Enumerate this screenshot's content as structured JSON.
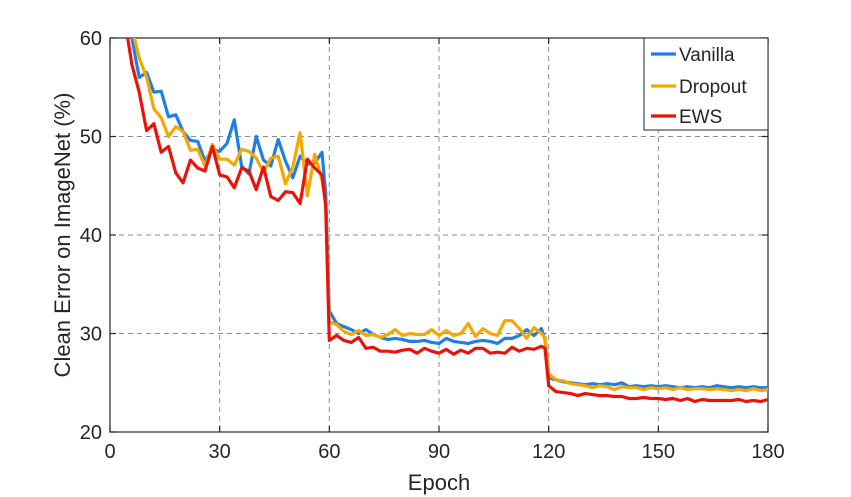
{
  "chart_data": {
    "type": "line",
    "title": "",
    "xlabel": "Epoch",
    "ylabel": "Clean Error on ImageNet (%)",
    "xlim": [
      0,
      180
    ],
    "ylim": [
      20,
      60
    ],
    "xticks": [
      0,
      30,
      60,
      90,
      120,
      150,
      180
    ],
    "yticks": [
      20,
      30,
      40,
      50,
      60
    ],
    "xtick_labels": [
      "0",
      "30",
      "60",
      "90",
      "120",
      "150",
      "180"
    ],
    "ytick_labels": [
      "20",
      "30",
      "40",
      "50",
      "60"
    ],
    "grid": true,
    "legend_position": "top-right",
    "series": [
      {
        "name": "Vanilla",
        "color": "#1f7fe8",
        "x": [
          4,
          6,
          8,
          10,
          12,
          14,
          16,
          18,
          20,
          22,
          24,
          26,
          28,
          30,
          32,
          34,
          36,
          38,
          40,
          42,
          44,
          46,
          48,
          50,
          52,
          54,
          56,
          58,
          59,
          60,
          62,
          64,
          66,
          68,
          70,
          72,
          74,
          76,
          78,
          80,
          82,
          84,
          86,
          88,
          90,
          92,
          94,
          96,
          98,
          100,
          102,
          104,
          106,
          108,
          110,
          112,
          114,
          116,
          118,
          119,
          120,
          122,
          124,
          126,
          128,
          130,
          132,
          134,
          136,
          138,
          140,
          142,
          144,
          146,
          148,
          150,
          152,
          154,
          156,
          158,
          160,
          162,
          164,
          166,
          168,
          170,
          172,
          174,
          176,
          178,
          180
        ],
        "y": [
          62.0,
          60.0,
          56.0,
          56.5,
          54.5,
          54.6,
          52.0,
          52.2,
          50.5,
          49.6,
          49.5,
          47.5,
          48.7,
          48.5,
          49.3,
          51.7,
          47.0,
          46.2,
          50.0,
          47.6,
          47.0,
          49.7,
          47.5,
          45.8,
          48.0,
          47.2,
          47.3,
          48.4,
          44.2,
          32.3,
          31.0,
          30.7,
          30.4,
          30.0,
          30.4,
          29.9,
          29.6,
          29.4,
          29.5,
          29.4,
          29.2,
          29.2,
          29.3,
          29.1,
          29.0,
          29.5,
          29.2,
          29.1,
          29.0,
          29.2,
          29.3,
          29.2,
          29.0,
          29.5,
          29.5,
          29.8,
          30.4,
          29.8,
          30.5,
          29.4,
          25.5,
          25.3,
          25.1,
          25.0,
          24.9,
          24.8,
          24.9,
          24.8,
          24.9,
          24.8,
          25.0,
          24.6,
          24.7,
          24.6,
          24.7,
          24.6,
          24.7,
          24.6,
          24.5,
          24.6,
          24.5,
          24.6,
          24.5,
          24.7,
          24.6,
          24.5,
          24.6,
          24.5,
          24.6,
          24.5,
          24.5
        ]
      },
      {
        "name": "Dropout",
        "color": "#f5a800",
        "x": [
          4,
          6,
          8,
          10,
          12,
          14,
          16,
          18,
          20,
          22,
          24,
          26,
          28,
          30,
          32,
          34,
          36,
          38,
          40,
          42,
          44,
          46,
          48,
          50,
          52,
          54,
          56,
          58,
          59,
          60,
          62,
          64,
          66,
          68,
          70,
          72,
          74,
          76,
          78,
          80,
          82,
          84,
          86,
          88,
          90,
          92,
          94,
          96,
          98,
          100,
          102,
          104,
          106,
          108,
          110,
          112,
          114,
          116,
          118,
          119,
          120,
          122,
          124,
          126,
          128,
          130,
          132,
          134,
          136,
          138,
          140,
          142,
          144,
          146,
          148,
          150,
          152,
          154,
          156,
          158,
          160,
          162,
          164,
          166,
          168,
          170,
          172,
          174,
          176,
          178,
          180
        ],
        "y": [
          62.0,
          61.0,
          58.0,
          56.0,
          52.8,
          51.9,
          50.0,
          51.0,
          50.5,
          48.6,
          48.7,
          47.0,
          49.2,
          47.7,
          47.7,
          47.1,
          48.7,
          48.5,
          47.8,
          46.4,
          47.8,
          48.0,
          45.2,
          46.9,
          50.4,
          44.0,
          48.2,
          45.6,
          43.2,
          31.2,
          30.9,
          30.2,
          29.9,
          30.3,
          29.8,
          29.9,
          29.6,
          29.9,
          30.4,
          29.8,
          30.0,
          29.9,
          29.9,
          30.4,
          29.8,
          30.3,
          29.8,
          30.0,
          31.0,
          29.7,
          30.5,
          30.0,
          29.8,
          31.3,
          31.3,
          30.5,
          29.5,
          30.6,
          30.0,
          29.6,
          25.9,
          25.3,
          25.2,
          24.9,
          24.8,
          24.7,
          24.5,
          24.7,
          24.6,
          24.3,
          24.6,
          24.5,
          24.5,
          24.3,
          24.5,
          24.4,
          24.5,
          24.3,
          24.5,
          24.3,
          24.4,
          24.4,
          24.3,
          24.4,
          24.3,
          24.2,
          24.3,
          24.2,
          24.4,
          24.2,
          24.3
        ]
      },
      {
        "name": "EWS",
        "color": "#e8140c",
        "x": [
          4,
          6,
          8,
          10,
          12,
          14,
          16,
          18,
          20,
          22,
          24,
          26,
          28,
          30,
          32,
          34,
          36,
          38,
          40,
          42,
          44,
          46,
          48,
          50,
          52,
          54,
          56,
          58,
          59,
          60,
          62,
          64,
          66,
          68,
          70,
          72,
          74,
          76,
          78,
          80,
          82,
          84,
          86,
          88,
          90,
          92,
          94,
          96,
          98,
          100,
          102,
          104,
          106,
          108,
          110,
          112,
          114,
          116,
          118,
          119,
          120,
          122,
          124,
          126,
          128,
          130,
          132,
          134,
          136,
          138,
          140,
          142,
          144,
          146,
          148,
          150,
          152,
          154,
          156,
          158,
          160,
          162,
          164,
          166,
          168,
          170,
          172,
          174,
          176,
          178,
          180
        ],
        "y": [
          62.0,
          57.3,
          54.5,
          50.6,
          51.3,
          48.4,
          49.0,
          46.3,
          45.3,
          47.6,
          46.8,
          46.5,
          49.0,
          46.1,
          45.9,
          44.8,
          46.8,
          46.5,
          44.6,
          46.9,
          43.9,
          43.5,
          44.4,
          44.3,
          43.2,
          47.7,
          46.8,
          46.1,
          43.0,
          29.3,
          29.8,
          29.3,
          29.1,
          29.6,
          28.5,
          28.6,
          28.2,
          28.2,
          28.1,
          28.3,
          28.4,
          28.0,
          28.5,
          28.2,
          28.0,
          28.4,
          27.9,
          28.3,
          28.0,
          28.5,
          28.5,
          28.0,
          28.1,
          28.0,
          28.6,
          28.2,
          28.5,
          28.4,
          28.7,
          28.5,
          24.7,
          24.1,
          24.0,
          23.9,
          23.7,
          23.9,
          23.8,
          23.7,
          23.7,
          23.6,
          23.6,
          23.4,
          23.4,
          23.5,
          23.4,
          23.4,
          23.3,
          23.4,
          23.2,
          23.4,
          23.1,
          23.3,
          23.2,
          23.2,
          23.2,
          23.2,
          23.3,
          23.1,
          23.2,
          23.1,
          23.3
        ]
      }
    ]
  }
}
